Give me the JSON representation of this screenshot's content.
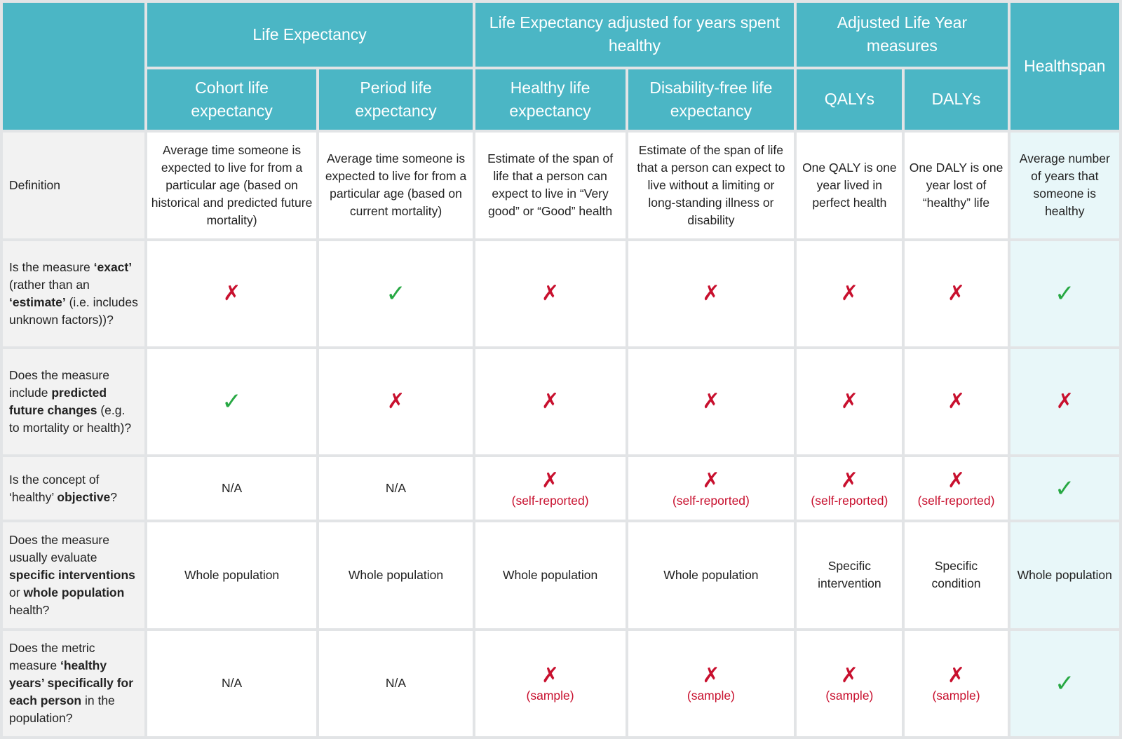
{
  "header": {
    "group_life_expectancy": "Life Expectancy",
    "group_adjusted": "Life Expectancy adjusted for years spent healthy",
    "group_adjusted_life_year": "Adjusted Life Year measures",
    "healthspan": "Healthspan",
    "columns": [
      "Cohort life expectancy",
      "Period life expectancy",
      "Healthy life expectancy",
      "Disability-free life expectancy",
      "QALYs",
      "DALYs"
    ]
  },
  "rows": {
    "definition": {
      "label": "Definition",
      "cells": [
        "Average time someone is expected to live for from a particular age (based on historical and predicted future mortality)",
        "Average time someone is expected to live for from a particular age (based on current mortality)",
        "Estimate of the span of life that a person can expect to live in “Very good” or “Good” health",
        "Estimate of the span of life that a person can expect to live without a limiting or long-standing illness or disability",
        "One QALY is one year lived in perfect health",
        "One DALY is one year lost of “healthy” life",
        "Average number of years that someone is healthy"
      ]
    },
    "exact": {
      "label_parts": [
        "Is the measure ",
        "‘exact’",
        " (rather than an ",
        "‘estimate’",
        " (i.e. includes unknown factors))?"
      ],
      "marks": [
        "cross",
        "check",
        "cross",
        "cross",
        "cross",
        "cross",
        "check"
      ]
    },
    "predicted": {
      "label_parts": [
        "Does the measure include ",
        "predicted future changes",
        " (e.g. to mortality or health)?"
      ],
      "marks": [
        "check",
        "cross",
        "cross",
        "cross",
        "cross",
        "cross",
        "cross"
      ]
    },
    "objective": {
      "label_parts": [
        "Is the concept of ‘healthy’ ",
        "objective",
        "?"
      ],
      "na": "N/A",
      "note": "(self-reported)"
    },
    "interventions": {
      "label_parts": [
        "Does the measure usually evaluate ",
        "specific interventions",
        " or ",
        "whole population",
        " health?"
      ],
      "cells": [
        "Whole population",
        "Whole population",
        "Whole population",
        "Whole population",
        "Specific intervention",
        "Specific condition",
        "Whole population"
      ]
    },
    "each_person": {
      "label_parts": [
        "Does the metric measure ",
        "‘healthy years’ specifically for each person",
        " in the population?"
      ],
      "na": "N/A",
      "note": "(sample)"
    }
  },
  "icons": {
    "cross": "✗",
    "check": "✓"
  },
  "colors": {
    "header": "#4bb6c5",
    "cross": "#c8102e",
    "check": "#27a843",
    "healthspan_bg": "#e8f7f9"
  }
}
